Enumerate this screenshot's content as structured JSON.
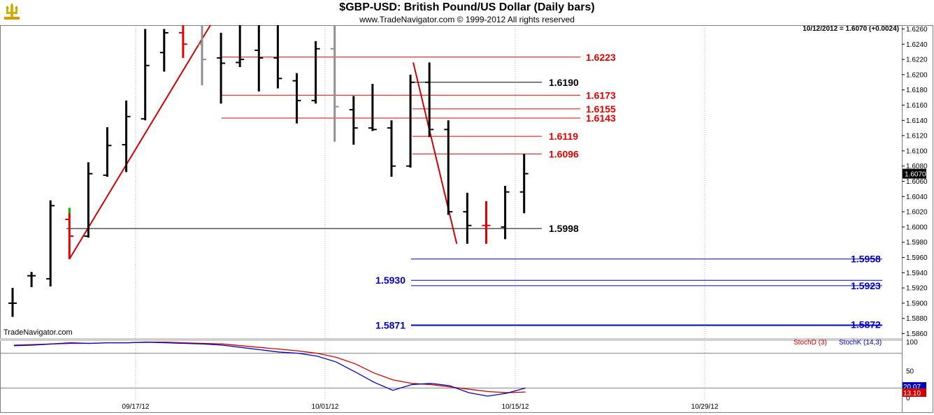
{
  "header": {
    "title": "$GBP-USD:  British Pound/US Dollar  (Daily bars)",
    "subtitle": "www.TradeNavigator.com © 1999-2012 All rights reserved",
    "readout": "10/12/2012 = 1.6070 (+0.0024)",
    "watermark": "TradeNavigator.com"
  },
  "icons": {
    "logo": "trident-logo-icon"
  },
  "colors": {
    "up_bar": "#000000",
    "highlight_bar": "#e00000",
    "faded_bar": "#909090",
    "red_level": "#e00000",
    "black_level": "#000000",
    "blue_level": "#0000c0",
    "trendline": "#d00000",
    "stoch_d": "#d00000",
    "stoch_k": "#0000c0"
  },
  "chart_data": [
    {
      "type": "ohlc",
      "title": "$GBP-USD:  British Pound/US Dollar  (Daily bars)",
      "ylim": [
        1.5855,
        1.6265
      ],
      "y_ticks": [
        "1.6260",
        "1.6240",
        "1.6220",
        "1.6200",
        "1.6180",
        "1.6160",
        "1.6140",
        "1.6120",
        "1.6100",
        "1.6080",
        "1.6060",
        "1.6040",
        "1.6020",
        "1.6000",
        "1.5980",
        "1.5960",
        "1.5940",
        "1.5920",
        "1.5900",
        "1.5880",
        "1.5860"
      ],
      "x_ticks": [
        "09/17/12",
        "10/01/12",
        "10/15/12",
        "10/29/12"
      ],
      "last_price": "1.6070",
      "bars": [
        {
          "date": "09/04/12",
          "o": 1.59,
          "h": 1.592,
          "l": 1.5882,
          "c": 1.59,
          "style": "normal"
        },
        {
          "date": "09/05/12",
          "o": 1.5936,
          "h": 1.5941,
          "l": 1.5921,
          "c": 1.5936,
          "style": "normal"
        },
        {
          "date": "09/06/12",
          "o": 1.5932,
          "h": 1.6035,
          "l": 1.5922,
          "c": 1.6028,
          "style": "normal"
        },
        {
          "date": "09/07/12",
          "o": 1.601,
          "h": 1.6025,
          "l": 1.5958,
          "c": 1.5988,
          "style": "highlight"
        },
        {
          "date": "09/10/12",
          "o": 1.5988,
          "h": 1.6085,
          "l": 1.5986,
          "c": 1.607,
          "style": "normal"
        },
        {
          "date": "09/11/12",
          "o": 1.6068,
          "h": 1.6131,
          "l": 1.6066,
          "c": 1.6107,
          "style": "normal"
        },
        {
          "date": "09/12/12",
          "o": 1.6108,
          "h": 1.6166,
          "l": 1.6072,
          "c": 1.6145,
          "style": "normal"
        },
        {
          "date": "09/13/12",
          "o": 1.6142,
          "h": 1.626,
          "l": 1.614,
          "c": 1.6212,
          "style": "normal"
        },
        {
          "date": "09/14/12",
          "o": 1.6229,
          "h": 1.626,
          "l": 1.6204,
          "c": 1.6255,
          "style": "normal"
        },
        {
          "date": "09/17/12",
          "o": 1.6255,
          "h": 1.6265,
          "l": 1.6222,
          "c": 1.624,
          "style": "highlight"
        },
        {
          "date": "09/18/12",
          "o": 1.624,
          "h": 1.6265,
          "l": 1.6186,
          "c": 1.622,
          "style": "faded"
        },
        {
          "date": "09/19/12",
          "o": 1.6222,
          "h": 1.6255,
          "l": 1.6162,
          "c": 1.6215,
          "style": "normal"
        },
        {
          "date": "09/20/12",
          "o": 1.6216,
          "h": 1.6265,
          "l": 1.621,
          "c": 1.622,
          "style": "normal"
        },
        {
          "date": "09/21/12",
          "o": 1.6232,
          "h": 1.6265,
          "l": 1.6178,
          "c": 1.6222,
          "style": "normal"
        },
        {
          "date": "09/24/12",
          "o": 1.6222,
          "h": 1.6265,
          "l": 1.6182,
          "c": 1.6195,
          "style": "normal"
        },
        {
          "date": "09/25/12",
          "o": 1.6192,
          "h": 1.6202,
          "l": 1.6136,
          "c": 1.6166,
          "style": "normal"
        },
        {
          "date": "09/26/12",
          "o": 1.6166,
          "h": 1.6244,
          "l": 1.6162,
          "c": 1.6234,
          "style": "normal"
        },
        {
          "date": "09/27/12",
          "o": 1.6234,
          "h": 1.6265,
          "l": 1.6112,
          "c": 1.6158,
          "style": "faded"
        },
        {
          "date": "09/28/12",
          "o": 1.6154,
          "h": 1.6172,
          "l": 1.6108,
          "c": 1.613,
          "style": "normal"
        },
        {
          "date": "10/01/12",
          "o": 1.613,
          "h": 1.6188,
          "l": 1.6126,
          "c": 1.6128,
          "style": "normal"
        },
        {
          "date": "10/02/12",
          "o": 1.613,
          "h": 1.614,
          "l": 1.6066,
          "c": 1.608,
          "style": "normal"
        },
        {
          "date": "10/03/12",
          "o": 1.608,
          "h": 1.62,
          "l": 1.6078,
          "c": 1.619,
          "style": "normal"
        },
        {
          "date": "10/04/12",
          "o": 1.619,
          "h": 1.6216,
          "l": 1.6118,
          "c": 1.6128,
          "style": "normal"
        },
        {
          "date": "10/05/12",
          "o": 1.6128,
          "h": 1.614,
          "l": 1.6016,
          "c": 1.602,
          "style": "normal"
        },
        {
          "date": "10/08/12",
          "o": 1.602,
          "h": 1.6045,
          "l": 1.5978,
          "c": 1.6002,
          "style": "normal"
        },
        {
          "date": "10/09/12",
          "o": 1.6002,
          "h": 1.6034,
          "l": 1.5978,
          "c": 1.6002,
          "style": "highlight"
        },
        {
          "date": "10/10/12",
          "o": 1.6,
          "h": 1.6054,
          "l": 1.5984,
          "c": 1.6046,
          "style": "normal"
        },
        {
          "date": "10/11/12",
          "o": 1.6046,
          "h": 1.6096,
          "l": 1.6018,
          "c": 1.607,
          "style": "normal"
        }
      ],
      "levels": [
        {
          "label": "1.6223",
          "value": 1.6223,
          "color": "red",
          "side": "left"
        },
        {
          "label": "1.6190",
          "value": 1.619,
          "color": "black",
          "side": "left"
        },
        {
          "label": "1.6173",
          "value": 1.6173,
          "color": "red",
          "side": "left"
        },
        {
          "label": "1.6155",
          "value": 1.6155,
          "color": "red",
          "side": "left"
        },
        {
          "label": "1.6143",
          "value": 1.6143,
          "color": "red",
          "side": "left"
        },
        {
          "label": "1.6119",
          "value": 1.6119,
          "color": "red",
          "side": "left"
        },
        {
          "label": "1.6096",
          "value": 1.6096,
          "color": "red",
          "side": "left"
        },
        {
          "label": "1.5998",
          "value": 1.5998,
          "color": "black",
          "side": "left"
        },
        {
          "label": "1.5958",
          "value": 1.5958,
          "color": "blue",
          "side": "right"
        },
        {
          "label": "1.5930",
          "value": 1.593,
          "color": "blue",
          "side": "leftlabel"
        },
        {
          "label": "1.5923",
          "value": 1.5923,
          "color": "blue",
          "side": "right"
        },
        {
          "label": "1.5871",
          "value": 1.5871,
          "color": "blue",
          "side": "leftlabel"
        },
        {
          "label": "1.5872",
          "value": 1.5872,
          "color": "blue",
          "side": "right"
        }
      ]
    },
    {
      "type": "line",
      "title": "",
      "ylim": [
        0,
        100
      ],
      "y_ticks": [
        "100",
        "50",
        "0"
      ],
      "series": [
        {
          "name": "StochD (3)",
          "current": "13.10",
          "values": [
            94,
            95,
            96,
            97,
            97,
            98,
            98,
            99,
            99,
            98,
            97,
            96,
            93,
            90,
            87,
            84,
            80,
            73,
            62,
            46,
            34,
            28,
            26,
            22,
            18,
            14,
            12,
            13.1
          ]
        },
        {
          "name": "StochK (14,3)",
          "current": "20.07",
          "values": [
            93,
            94,
            96,
            98,
            97,
            98,
            98,
            99,
            98,
            97,
            96,
            94,
            90,
            86,
            82,
            80,
            75,
            65,
            48,
            30,
            16,
            26,
            28,
            24,
            12,
            6,
            11,
            20.07
          ]
        }
      ]
    }
  ]
}
